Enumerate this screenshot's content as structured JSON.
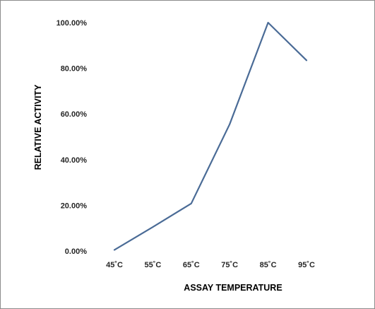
{
  "chart_data": {
    "type": "line",
    "categories": [
      "45˚C",
      "55˚C",
      "65˚C",
      "75˚C",
      "85˚C",
      "95˚C"
    ],
    "series": [
      {
        "values": [
          0.5,
          10.5,
          20.8,
          55.5,
          100.0,
          83.5
        ]
      }
    ],
    "xlabel": "ASSAY TEMPERATURE",
    "ylabel": "RELATIVE ACTIVITY",
    "ylim": [
      0,
      100
    ],
    "yticks": [
      0,
      20,
      40,
      60,
      80,
      100
    ],
    "ytick_labels": [
      "0.00%",
      "20.00%",
      "40.00%",
      "60.00%",
      "80.00%",
      "100.00%"
    ],
    "grid": false,
    "legend": "none",
    "line_color": "#4a6b96"
  }
}
